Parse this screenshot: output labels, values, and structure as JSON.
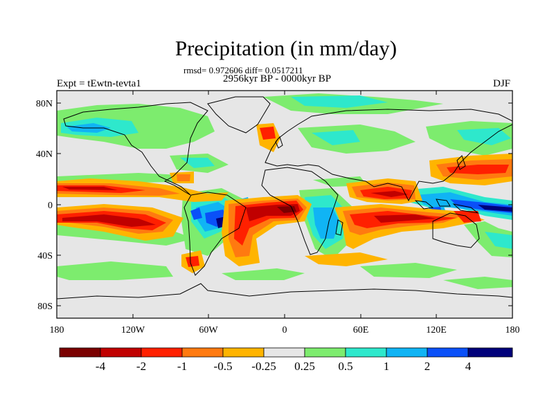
{
  "figure": {
    "title": "Precipitation (in mm/day)",
    "stats_line": "rmsd= 0.972606 diff= 0.0517211",
    "period_line": "2956kyr BP - 0000kyr BP",
    "experiment_label": "Expt = tEwtn-tevta1",
    "season_label": "DJF"
  },
  "axes": {
    "lat_labels": [
      "80N",
      "40N",
      "0",
      "40S",
      "80S"
    ],
    "lon_labels": [
      "180",
      "120W",
      "60W",
      "0",
      "60E",
      "120E",
      "180"
    ]
  },
  "colorbar": {
    "labels": [
      "-4",
      "-2",
      "-1",
      "-0.5",
      "-0.25",
      "0.25",
      "0.5",
      "1",
      "2",
      "4"
    ],
    "colors": [
      "#7a0000",
      "#c00000",
      "#ff2000",
      "#ff7a10",
      "#ffb400",
      "#e6e6e6",
      "#7dec6e",
      "#2ee8cc",
      "#10b4f4",
      "#0a50f8",
      "#00007a"
    ]
  },
  "map": {
    "background": "#e6e6e6",
    "projection": "cylindrical equidistant, 180W to 180E, 90S to 90N"
  }
}
